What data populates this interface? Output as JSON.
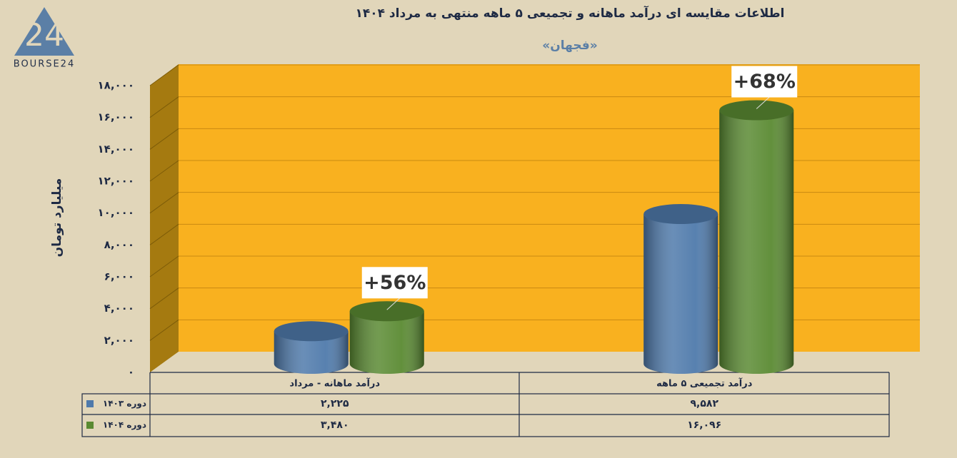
{
  "logo": {
    "mark": "24",
    "text": "BOURSE24"
  },
  "chart_data": {
    "type": "bar3d",
    "title": "اطلاعات مقایسه ای درآمد ماهانه و تجمیعی ۵ ماهه منتهی به مرداد ۱۴۰۴",
    "subtitle": "«فجهان»",
    "y_label": "میلیارد تومان",
    "categories": [
      "درآمد ماهانه - مرداد",
      "درآمد تجمیعی ۵ ماهه"
    ],
    "series": [
      {
        "name": "دوره ۱۴۰۳",
        "color": "#4f7aab",
        "values": [
          2225,
          9582
        ],
        "value_labels": [
          "۲,۲۲۵",
          "۹,۵۸۲"
        ]
      },
      {
        "name": "دوره ۱۴۰۴",
        "color": "#5a8a32",
        "values": [
          3480,
          16096
        ],
        "value_labels": [
          "۳,۴۸۰",
          "۱۶,۰۹۶"
        ]
      }
    ],
    "annotations": [
      "+56%",
      "+68%"
    ],
    "ylim": [
      0,
      18000
    ],
    "yticks": [
      {
        "value": 0,
        "label": "۰"
      },
      {
        "value": 2000,
        "label": "۲,۰۰۰"
      },
      {
        "value": 4000,
        "label": "۴,۰۰۰"
      },
      {
        "value": 6000,
        "label": "۶,۰۰۰"
      },
      {
        "value": 8000,
        "label": "۸,۰۰۰"
      },
      {
        "value": 10000,
        "label": "۱۰,۰۰۰"
      },
      {
        "value": 12000,
        "label": "۱۲,۰۰۰"
      },
      {
        "value": 14000,
        "label": "۱۴,۰۰۰"
      },
      {
        "value": 16000,
        "label": "۱۶,۰۰۰"
      },
      {
        "value": 18000,
        "label": "۱۸,۰۰۰"
      }
    ],
    "grid": true
  }
}
